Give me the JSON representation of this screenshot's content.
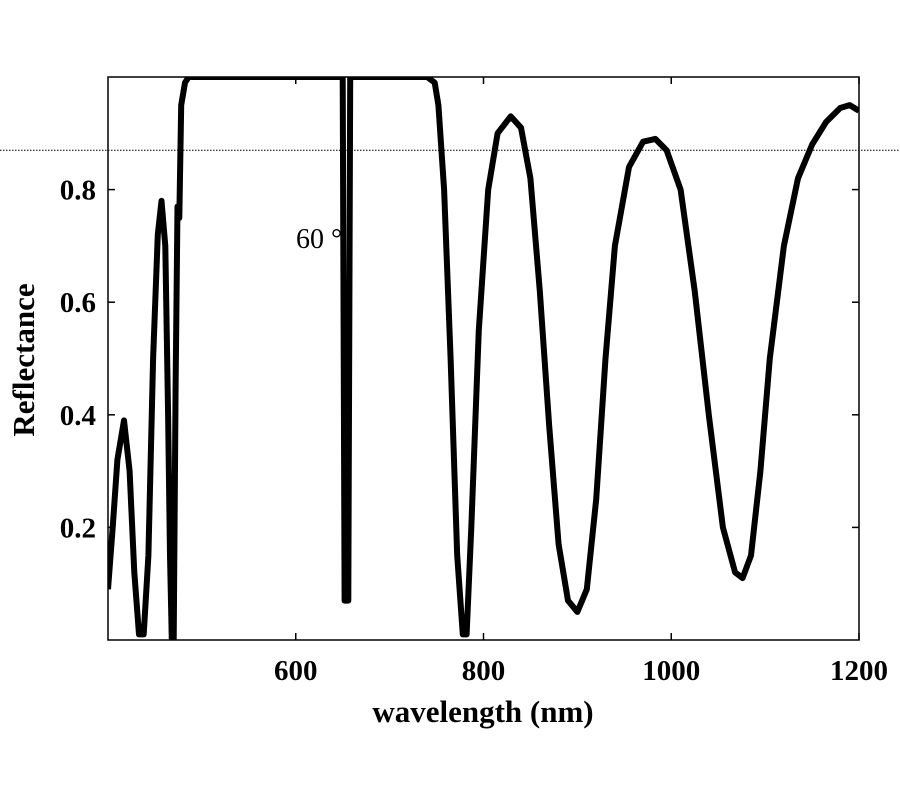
{
  "chart_data": {
    "type": "line",
    "title": "",
    "xlabel": "wavelength (nm)",
    "ylabel": "Reflectance",
    "xlim": [
      400,
      1200
    ],
    "ylim": [
      0,
      1
    ],
    "xticks": [
      600,
      800,
      1000,
      1200
    ],
    "xtick_labels": [
      "600",
      "800",
      "1000",
      "1200"
    ],
    "yticks": [
      0.2,
      0.4,
      0.6,
      0.8
    ],
    "ytick_labels": [
      "0.2",
      "0.4",
      "0.6",
      "0.8"
    ],
    "grid": false,
    "annotation": "60 °",
    "reference_line_y": 0.87,
    "series": [
      {
        "name": "60°",
        "color": "#000000",
        "x": [
          400,
          405,
          410,
          417,
          423,
          428,
          433,
          438,
          443,
          448,
          453,
          457,
          461,
          464,
          466,
          468,
          470,
          472,
          474,
          476,
          478,
          482,
          486,
          650,
          652,
          656,
          658,
          740,
          748,
          752,
          758,
          765,
          772,
          778,
          782,
          787,
          795,
          805,
          815,
          829,
          840,
          850,
          860,
          870,
          880,
          890,
          900,
          910,
          920,
          930,
          940,
          955,
          970,
          983,
          995,
          1010,
          1025,
          1040,
          1055,
          1068,
          1076,
          1085,
          1095,
          1105,
          1120,
          1135,
          1150,
          1165,
          1180,
          1190,
          1200
        ],
        "y": [
          0.09,
          0.2,
          0.32,
          0.39,
          0.3,
          0.12,
          0.01,
          0.01,
          0.15,
          0.5,
          0.72,
          0.78,
          0.7,
          0.4,
          0.15,
          0.0,
          0.0,
          0.45,
          0.77,
          0.75,
          0.95,
          0.99,
          1.0,
          1.0,
          0.07,
          0.07,
          1.0,
          1.0,
          0.99,
          0.95,
          0.8,
          0.5,
          0.15,
          0.01,
          0.01,
          0.2,
          0.55,
          0.8,
          0.9,
          0.93,
          0.91,
          0.82,
          0.62,
          0.38,
          0.17,
          0.07,
          0.05,
          0.09,
          0.25,
          0.5,
          0.7,
          0.84,
          0.885,
          0.89,
          0.87,
          0.8,
          0.62,
          0.4,
          0.2,
          0.12,
          0.11,
          0.15,
          0.3,
          0.5,
          0.7,
          0.82,
          0.88,
          0.92,
          0.945,
          0.95,
          0.94
        ]
      }
    ]
  }
}
